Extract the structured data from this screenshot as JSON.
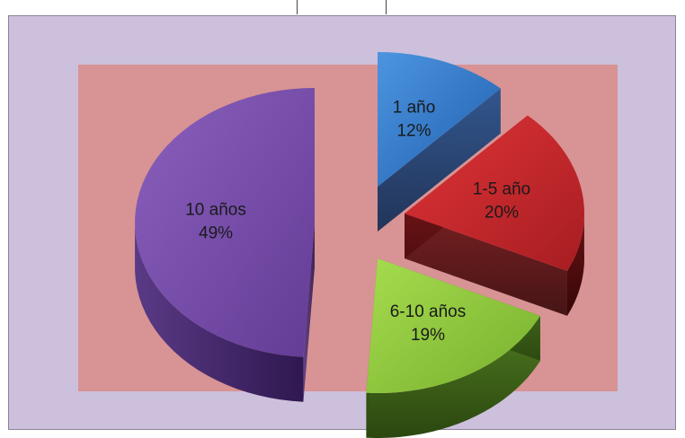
{
  "chart_data": {
    "type": "pie",
    "style": "3d-exploded",
    "slices": [
      {
        "label": "1 año",
        "value": 12,
        "percent_label": "12%",
        "color": "#2e75c9"
      },
      {
        "label": "1-5 año",
        "value": 20,
        "percent_label": "20%",
        "color": "#c8262a"
      },
      {
        "label": "6-10 años",
        "value": 19,
        "percent_label": "19%",
        "color": "#8cc63f"
      },
      {
        "label": "10 años",
        "value": 49,
        "percent_label": "49%",
        "color": "#7b4fa8"
      }
    ],
    "background_color": "#cdc0dc",
    "plot_area_color": "#d89394"
  }
}
